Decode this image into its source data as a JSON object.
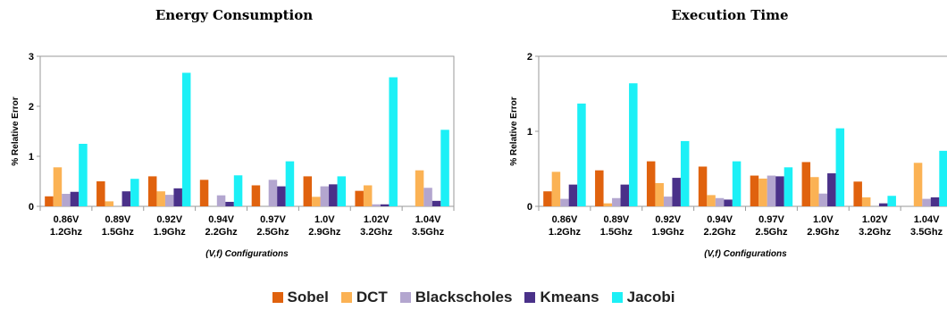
{
  "chart_data": [
    {
      "type": "bar",
      "title": "Energy Consumption",
      "xlabel": "(V,f) Configurations",
      "ylabel": "% Relative Error",
      "ylim": [
        0,
        3
      ],
      "yticks": [
        "0",
        "1",
        "2",
        "3"
      ],
      "categories": [
        [
          "0.86V",
          "1.2Ghz"
        ],
        [
          "0.89V",
          "1.5Ghz"
        ],
        [
          "0.92V",
          "1.9Ghz"
        ],
        [
          "0.94V",
          "2.2Ghz"
        ],
        [
          "0.97V",
          "2.5Ghz"
        ],
        [
          "1.0V",
          "2.9Ghz"
        ],
        [
          "1.02V",
          "3.2Ghz"
        ],
        [
          "1.04V",
          "3.5Ghz"
        ]
      ],
      "series": [
        {
          "name": "Sobel",
          "values": [
            0.2,
            0.5,
            0.6,
            0.53,
            0.42,
            0.6,
            0.31,
            0.0
          ]
        },
        {
          "name": "DCT",
          "values": [
            0.78,
            0.1,
            0.3,
            0.0,
            0.0,
            0.19,
            0.42,
            0.72
          ]
        },
        {
          "name": "Blackscholes",
          "values": [
            0.25,
            0.0,
            0.23,
            0.22,
            0.53,
            0.4,
            0.04,
            0.37
          ]
        },
        {
          "name": "Kmeans",
          "values": [
            0.29,
            0.3,
            0.36,
            0.09,
            0.4,
            0.44,
            0.04,
            0.11
          ]
        },
        {
          "name": "Jacobi",
          "values": [
            1.25,
            0.55,
            2.67,
            0.62,
            0.9,
            0.6,
            2.58,
            1.53
          ]
        }
      ],
      "grid": false,
      "legend": "bottom"
    },
    {
      "type": "bar",
      "title": "Execution Time",
      "xlabel": "(V,f) Configurations",
      "ylabel": "% Relative Error",
      "ylim": [
        0,
        2
      ],
      "yticks": [
        "0",
        "1",
        "2"
      ],
      "categories": [
        [
          "0.86V",
          "1.2Ghz"
        ],
        [
          "0.89V",
          "1.5Ghz"
        ],
        [
          "0.92V",
          "1.9Ghz"
        ],
        [
          "0.94V",
          "2.2Ghz"
        ],
        [
          "0.97V",
          "2.5Ghz"
        ],
        [
          "1.0V",
          "2.9Ghz"
        ],
        [
          "1.02V",
          "3.2Ghz"
        ],
        [
          "1.04V",
          "3.5Ghz"
        ]
      ],
      "series": [
        {
          "name": "Sobel",
          "values": [
            0.2,
            0.48,
            0.6,
            0.53,
            0.41,
            0.59,
            0.33,
            0.0
          ]
        },
        {
          "name": "DCT",
          "values": [
            0.46,
            0.04,
            0.31,
            0.15,
            0.37,
            0.39,
            0.12,
            0.58
          ]
        },
        {
          "name": "Blackscholes",
          "values": [
            0.1,
            0.11,
            0.13,
            0.11,
            0.41,
            0.17,
            0.0,
            0.1
          ]
        },
        {
          "name": "Kmeans",
          "values": [
            0.29,
            0.29,
            0.38,
            0.09,
            0.4,
            0.44,
            0.04,
            0.12
          ]
        },
        {
          "name": "Jacobi",
          "values": [
            1.37,
            1.64,
            0.87,
            0.6,
            0.52,
            1.04,
            0.14,
            0.74
          ]
        }
      ],
      "grid": false,
      "legend": "bottom"
    }
  ],
  "legend": [
    {
      "name": "Sobel",
      "color": "#e0620e"
    },
    {
      "name": "DCT",
      "color": "#fbb254"
    },
    {
      "name": "Blackscholes",
      "color": "#b3a6cf"
    },
    {
      "name": "Kmeans",
      "color": "#4a3189"
    },
    {
      "name": "Jacobi",
      "color": "#1cf0f6"
    }
  ]
}
